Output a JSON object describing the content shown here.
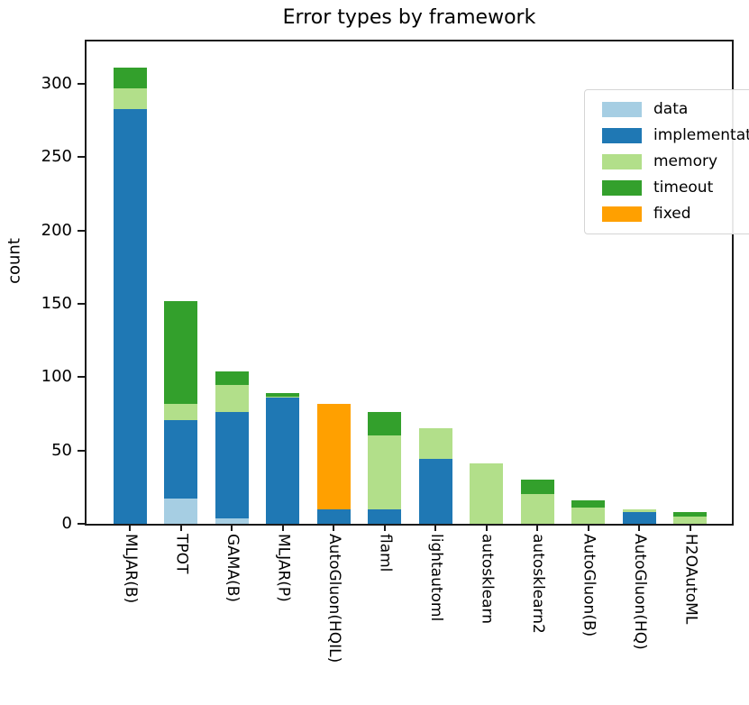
{
  "title": "Error types by framework",
  "axes": {
    "ylabel": "count",
    "ytick_labels": [
      "0",
      "50",
      "100",
      "150",
      "200",
      "250",
      "300"
    ]
  },
  "colors": {
    "data": "#a6cee3",
    "implementation": "#1f78b4",
    "memory": "#b2df8a",
    "timeout": "#33a02c",
    "fixed": "#ffa000",
    "axis": "#1a1a1a"
  },
  "legend": {
    "entries": [
      "data",
      "implementation",
      "memory",
      "timeout",
      "fixed"
    ],
    "position": "upper right"
  },
  "chart_data": {
    "type": "bar",
    "stacked": true,
    "title": "Error types by framework",
    "xlabel": "",
    "ylabel": "count",
    "ylim": [
      0,
      329
    ],
    "yticks": [
      0,
      50,
      100,
      150,
      200,
      250,
      300
    ],
    "grid": false,
    "legend_position": "upper right",
    "categories": [
      "MLJAR(B)",
      "TPOT",
      "GAMA(B)",
      "MLJAR(P)",
      "AutoGluon(HQIL)",
      "flaml",
      "lightautoml",
      "autosklearn",
      "autosklearn2",
      "AutoGluon(B)",
      "AutoGluon(HQ)",
      "H2OAutoML"
    ],
    "totals": [
      311,
      152,
      104,
      89,
      82,
      76,
      65,
      41,
      30,
      16,
      10,
      8
    ],
    "series": [
      {
        "name": "data",
        "color": "#a6cee3",
        "values": [
          0,
          17,
          4,
          0,
          0,
          0,
          0,
          0,
          0,
          0,
          0,
          0
        ]
      },
      {
        "name": "implementation",
        "color": "#1f78b4",
        "values": [
          283,
          54,
          72,
          86,
          10,
          10,
          44,
          0,
          0,
          0,
          8,
          0
        ]
      },
      {
        "name": "memory",
        "color": "#b2df8a",
        "values": [
          14,
          11,
          19,
          1,
          0,
          50,
          21,
          41,
          20,
          11,
          2,
          5
        ]
      },
      {
        "name": "timeout",
        "color": "#33a02c",
        "values": [
          14,
          70,
          9,
          2,
          0,
          16,
          0,
          0,
          10,
          5,
          0,
          3
        ]
      },
      {
        "name": "fixed",
        "color": "#ffa000",
        "values": [
          0,
          0,
          0,
          0,
          72,
          0,
          0,
          0,
          0,
          0,
          0,
          0
        ]
      }
    ]
  }
}
